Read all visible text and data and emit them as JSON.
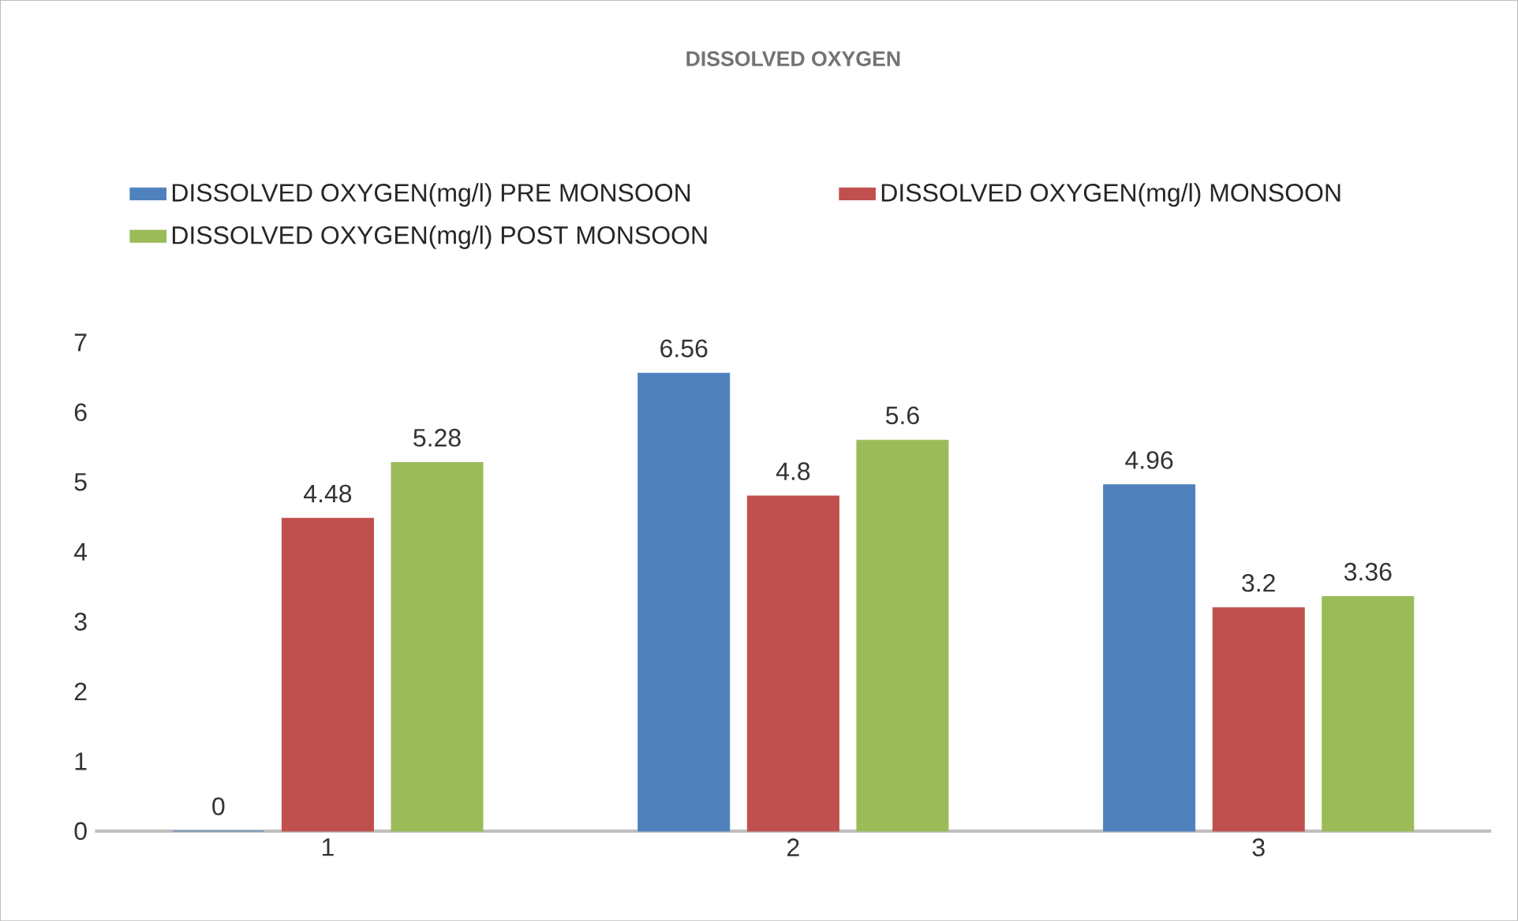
{
  "chart_data": {
    "type": "bar",
    "title": "DISSOLVED OXYGEN",
    "categories": [
      "1",
      "2",
      "3"
    ],
    "series": [
      {
        "name": "DISSOLVED OXYGEN(mg/l) PRE MONSOON",
        "color": "#4f81bd",
        "values": [
          0,
          6.56,
          4.96
        ]
      },
      {
        "name": "DISSOLVED OXYGEN(mg/l) MONSOON",
        "color": "#c0504d",
        "values": [
          4.48,
          4.8,
          3.2
        ]
      },
      {
        "name": "DISSOLVED OXYGEN(mg/l) POST MONSOON",
        "color": "#9bbb59",
        "values": [
          5.28,
          5.6,
          3.36
        ]
      }
    ],
    "ylim": [
      0,
      7
    ],
    "yticks": [
      0,
      1,
      2,
      3,
      4,
      5,
      6,
      7
    ],
    "data_labels": true,
    "legend": "top"
  }
}
